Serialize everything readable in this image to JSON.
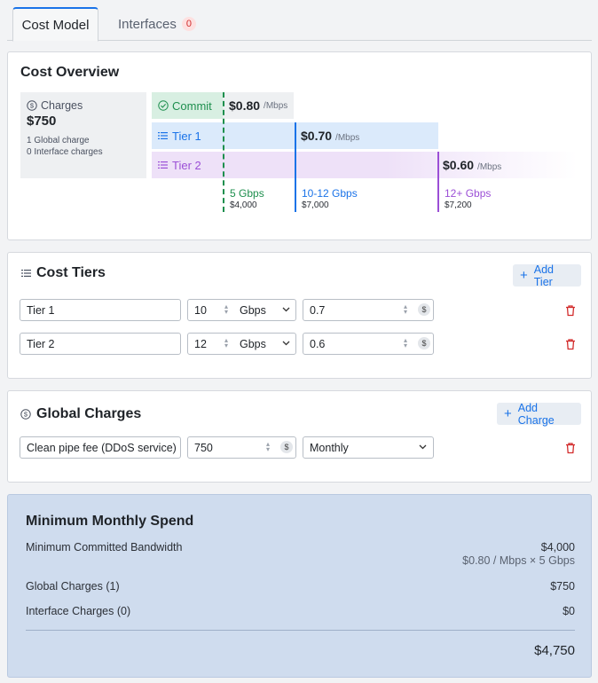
{
  "tabs": [
    {
      "label": "Cost Model"
    },
    {
      "label": "Interfaces",
      "badge": "0"
    }
  ],
  "overview": {
    "title": "Cost Overview",
    "charges_label": "Charges",
    "charges_total": "$750",
    "global_count": "1 Global charge",
    "interface_count": "0 Interface charges",
    "commit": {
      "label": "Commit",
      "price": "$0.80",
      "unit": "/Mbps"
    },
    "tier1": {
      "label": "Tier 1",
      "price": "$0.70",
      "unit": "/Mbps"
    },
    "tier2": {
      "label": "Tier 2",
      "price": "$0.60",
      "unit": "/Mbps"
    },
    "marks": [
      {
        "range": "5 Gbps",
        "cost": "$4,000",
        "color": "#1e8f4e"
      },
      {
        "range": "10-12 Gbps",
        "cost": "$7,000",
        "color": "#1a73e8"
      },
      {
        "range": "12+ Gbps",
        "cost": "$7,200",
        "color": "#9b4fd6"
      }
    ]
  },
  "tiers": {
    "title": "Cost Tiers",
    "add_label": "Add Tier",
    "rows": [
      {
        "name": "Tier 1",
        "amount": "10",
        "unit": "Gbps",
        "price": "0.7"
      },
      {
        "name": "Tier 2",
        "amount": "12",
        "unit": "Gbps",
        "price": "0.6"
      }
    ]
  },
  "charges": {
    "title": "Global Charges",
    "add_label": "Add Charge",
    "rows": [
      {
        "name": "Clean pipe fee (DDoS service)",
        "amount": "750",
        "frequency": "Monthly"
      }
    ]
  },
  "summary": {
    "title": "Minimum Monthly Spend",
    "bandwidth_label": "Minimum Committed Bandwidth",
    "bandwidth_value": "$4,000",
    "bandwidth_detail": "$0.80 / Mbps × 5 Gbps",
    "global_label": "Global Charges (1)",
    "global_value": "$750",
    "interface_label": "Interface Charges (0)",
    "interface_value": "$0",
    "total": "$4,750"
  },
  "colors": {
    "accent": "#1a73e8",
    "commit": "#1e8f4e",
    "tier2": "#9b4fd6",
    "danger": "#d22b2b",
    "summary_bg": "#cfdcee"
  }
}
